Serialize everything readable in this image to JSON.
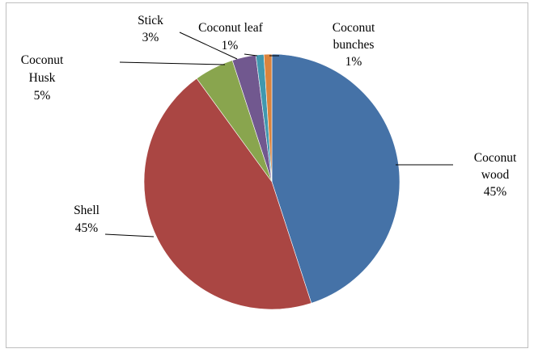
{
  "chart_data": {
    "type": "pie",
    "categories": [
      "Coconut wood",
      "Shell",
      "Coconut Husk",
      "Stick",
      "Coconut leaf",
      "Coconut bunches"
    ],
    "values": [
      45,
      45,
      5,
      3,
      1,
      1
    ],
    "data_labels": [
      "45%",
      "45%",
      "5%",
      "3%",
      "1%",
      "1%"
    ],
    "colors": [
      "#4572a7",
      "#aa4643",
      "#89a54e",
      "#71588f",
      "#4198af",
      "#db843d"
    ],
    "title": "",
    "legend": "none"
  }
}
